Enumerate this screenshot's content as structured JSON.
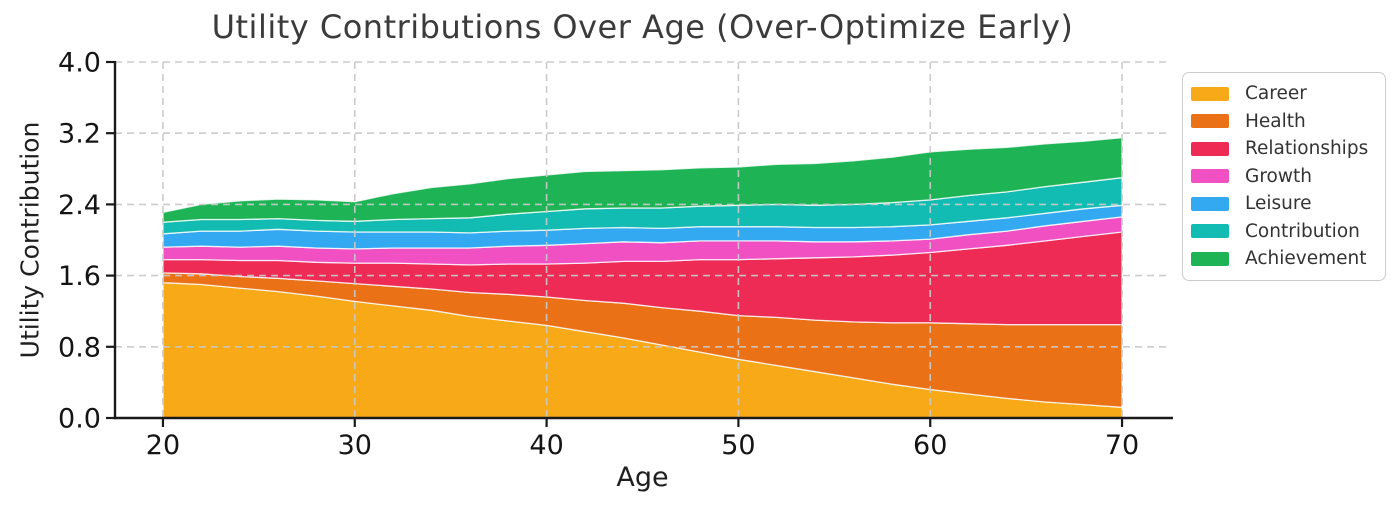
{
  "chart_data": {
    "type": "area",
    "stacked": true,
    "title": "Utility Contributions Over Age (Over-Optimize Early)",
    "xlabel": "Age",
    "ylabel": "Utility Contribution",
    "xlim": [
      17.5,
      72.5
    ],
    "ylim": [
      0,
      4
    ],
    "xticks": [
      20,
      30,
      40,
      50,
      60,
      70
    ],
    "yticks": [
      0,
      0.8,
      1.6,
      2.4,
      3.2,
      4
    ],
    "ytick_labels": [
      "0.0",
      "0.8",
      "1.6",
      "2.4",
      "3.2",
      "4.0"
    ],
    "grid": true,
    "grid_style": "dashed",
    "grid_color": "#c8c8c8",
    "legend_position": "upper-right-outside",
    "x": [
      20,
      22,
      24,
      26,
      28,
      30,
      32,
      34,
      36,
      38,
      40,
      42,
      44,
      46,
      48,
      50,
      52,
      54,
      56,
      58,
      60,
      62,
      64,
      66,
      68,
      70
    ],
    "series": [
      {
        "name": "Career",
        "color": "#F7A918",
        "values": [
          1.52,
          1.5,
          1.46,
          1.42,
          1.37,
          1.31,
          1.26,
          1.21,
          1.14,
          1.09,
          1.04,
          0.97,
          0.9,
          0.82,
          0.74,
          0.66,
          0.59,
          0.52,
          0.45,
          0.38,
          0.32,
          0.27,
          0.22,
          0.18,
          0.15,
          0.12
        ]
      },
      {
        "name": "Health",
        "color": "#EB7117",
        "values": [
          0.11,
          0.12,
          0.13,
          0.15,
          0.17,
          0.2,
          0.22,
          0.24,
          0.27,
          0.3,
          0.32,
          0.35,
          0.39,
          0.42,
          0.46,
          0.49,
          0.54,
          0.58,
          0.63,
          0.69,
          0.75,
          0.79,
          0.83,
          0.87,
          0.9,
          0.93
        ]
      },
      {
        "name": "Relationships",
        "color": "#ED2B55",
        "values": [
          0.15,
          0.16,
          0.18,
          0.2,
          0.21,
          0.23,
          0.26,
          0.28,
          0.31,
          0.34,
          0.37,
          0.42,
          0.47,
          0.52,
          0.58,
          0.63,
          0.66,
          0.7,
          0.73,
          0.76,
          0.79,
          0.84,
          0.89,
          0.94,
          0.99,
          1.04
        ]
      },
      {
        "name": "Growth",
        "color": "#F050C2",
        "values": [
          0.14,
          0.15,
          0.15,
          0.16,
          0.16,
          0.16,
          0.17,
          0.18,
          0.19,
          0.2,
          0.21,
          0.22,
          0.22,
          0.21,
          0.21,
          0.21,
          0.2,
          0.18,
          0.17,
          0.16,
          0.15,
          0.16,
          0.16,
          0.17,
          0.17,
          0.17
        ]
      },
      {
        "name": "Leisure",
        "color": "#33A9F1",
        "values": [
          0.15,
          0.17,
          0.18,
          0.19,
          0.19,
          0.19,
          0.18,
          0.18,
          0.17,
          0.17,
          0.17,
          0.17,
          0.16,
          0.16,
          0.16,
          0.16,
          0.16,
          0.16,
          0.16,
          0.16,
          0.16,
          0.15,
          0.15,
          0.14,
          0.14,
          0.13
        ]
      },
      {
        "name": "Contribution",
        "color": "#13BCB2",
        "values": [
          0.13,
          0.13,
          0.13,
          0.12,
          0.12,
          0.12,
          0.14,
          0.15,
          0.17,
          0.19,
          0.21,
          0.22,
          0.22,
          0.23,
          0.23,
          0.24,
          0.25,
          0.25,
          0.26,
          0.27,
          0.28,
          0.29,
          0.29,
          0.3,
          0.3,
          0.31
        ]
      },
      {
        "name": "Achievement",
        "color": "#1EB456",
        "values": [
          0.11,
          0.17,
          0.21,
          0.22,
          0.23,
          0.22,
          0.29,
          0.35,
          0.38,
          0.4,
          0.41,
          0.42,
          0.42,
          0.43,
          0.43,
          0.43,
          0.45,
          0.47,
          0.49,
          0.51,
          0.54,
          0.52,
          0.5,
          0.48,
          0.46,
          0.45
        ]
      }
    ]
  }
}
